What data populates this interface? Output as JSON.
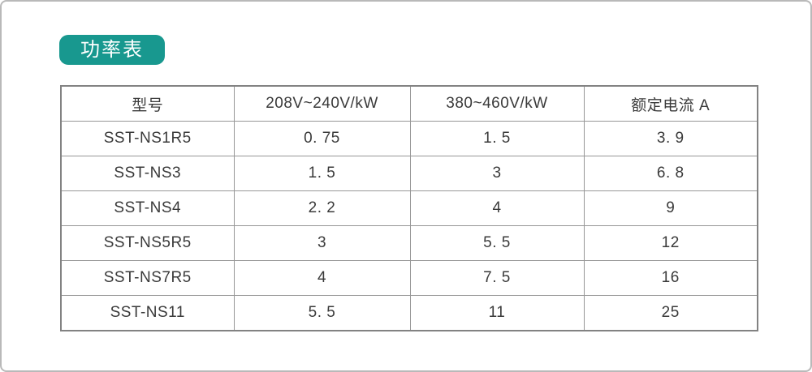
{
  "page": {
    "background_color": "#ffffff",
    "frame_border_color": "#b9b9b9"
  },
  "badge": {
    "label": "功率表",
    "bg_color": "#18988f",
    "text_color": "#ffffff"
  },
  "table": {
    "border_color": "#979797",
    "headers": [
      "型号",
      "208V~240V/kW",
      "380~460V/kW",
      "额定电流 A"
    ],
    "rows": [
      {
        "model": "SST-NS1R5",
        "kw_208_240v": "0. 75",
        "kw_380_460v": "1. 5",
        "rated_current_a": "3. 9"
      },
      {
        "model": "SST-NS3",
        "kw_208_240v": "1. 5",
        "kw_380_460v": "3",
        "rated_current_a": "6. 8"
      },
      {
        "model": "SST-NS4",
        "kw_208_240v": "2. 2",
        "kw_380_460v": "4",
        "rated_current_a": "9"
      },
      {
        "model": "SST-NS5R5",
        "kw_208_240v": "3",
        "kw_380_460v": "5. 5",
        "rated_current_a": "12"
      },
      {
        "model": "SST-NS7R5",
        "kw_208_240v": "4",
        "kw_380_460v": "7. 5",
        "rated_current_a": "16"
      },
      {
        "model": "SST-NS11",
        "kw_208_240v": "5. 5",
        "kw_380_460v": "11",
        "rated_current_a": "25"
      }
    ]
  }
}
